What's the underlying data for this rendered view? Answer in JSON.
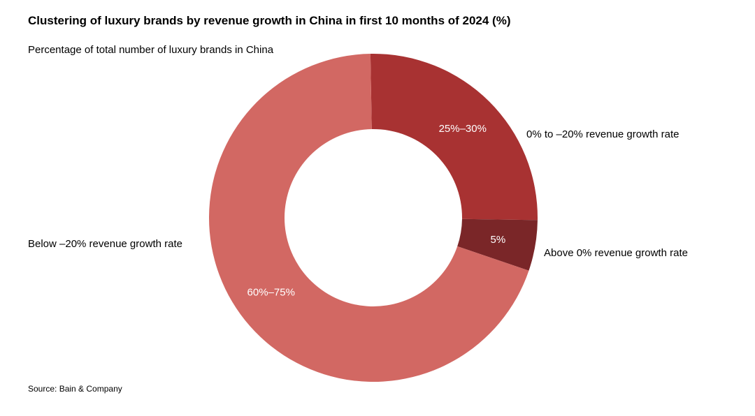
{
  "header": {
    "title": "Clustering of luxury brands by revenue growth in China in first 10 months of 2024 (%)",
    "subtitle": "Percentage of total number of luxury brands in China"
  },
  "footer": {
    "source": "Source: Bain & Company"
  },
  "chart_data": {
    "type": "pie",
    "donut": true,
    "title": "Clustering of luxury brands by revenue growth in China in first 10 months of 2024 (%)",
    "subtitle": "Percentage of total number of luxury brands in China",
    "legend": "none",
    "slices": [
      {
        "category": "0% to –20% revenue growth rate",
        "label": "25%–30%",
        "value": 25.5,
        "color": "#a83232"
      },
      {
        "category": "Above 0% revenue growth rate",
        "label": "5%",
        "value": 5,
        "color": "#7a2628"
      },
      {
        "category": "Below –20% revenue growth rate",
        "label": "60%–75%",
        "value": 69.5,
        "color": "#d26863"
      }
    ]
  }
}
